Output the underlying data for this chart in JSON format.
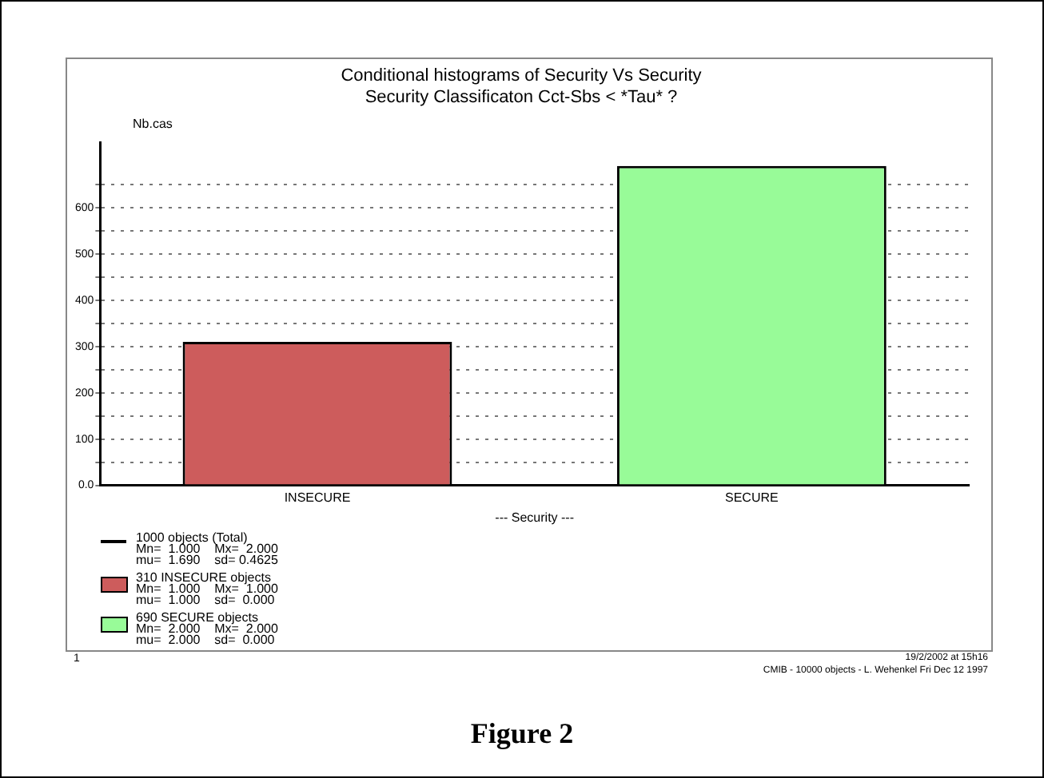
{
  "chart_data": {
    "type": "bar",
    "title": "Conditional histograms of Security Vs Security",
    "subtitle": "Security Classificaton Cct-Sbs < *Tau* ?",
    "xlabel": "--- Security ---",
    "ylabel": "Nb.cas",
    "categories": [
      "INSECURE",
      "SECURE"
    ],
    "series": [
      {
        "name": "310 INSECURE objects",
        "color": "#cd5c5c",
        "values": [
          310,
          null
        ]
      },
      {
        "name": "690 SECURE objects",
        "color": "#98fb98",
        "values": [
          null,
          690
        ]
      }
    ],
    "ylim": [
      0,
      740
    ],
    "yticks": [
      {
        "value": 0,
        "label": "0.0"
      },
      {
        "value": 50,
        "label": null
      },
      100,
      {
        "value": 150,
        "label": null
      },
      200,
      {
        "value": 250,
        "label": null
      },
      300,
      {
        "value": 350,
        "label": null
      },
      400,
      {
        "value": 450,
        "label": null
      },
      500,
      {
        "value": 550,
        "label": null
      },
      600,
      {
        "value": 650,
        "label": null
      }
    ],
    "grid": "y",
    "legend": "bottom left",
    "annotations": [
      "1000 objects (Total)",
      "Mn=  1.000    Mx=  2.000",
      "mu=  1.690    sd= 0.4625",
      "Mn=  1.000    Mx=  1.000",
      "mu=  1.000    sd=  0.000",
      "Mn=  2.000    Mx=  2.000",
      "mu=  2.000    sd=  0.000",
      "1",
      "19/2/2002 at 15h16",
      "CMIB - 10000 objects - L. Wehenkel Fri Dec 12 1997",
      "Figure 2"
    ]
  }
}
